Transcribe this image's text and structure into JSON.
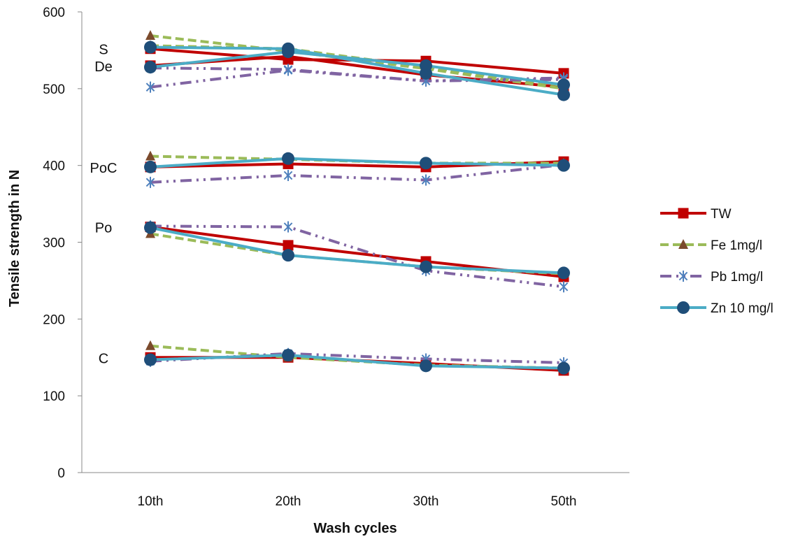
{
  "chart_data": {
    "type": "line",
    "title": "",
    "xlabel": "Wash cycles",
    "ylabel": "Tensile strength in N",
    "categories": [
      "10th",
      "20th",
      "30th",
      "50th"
    ],
    "ylim": [
      0,
      600
    ],
    "yticks": [
      0,
      100,
      200,
      300,
      400,
      500,
      600
    ],
    "grid": false,
    "legend_position": "right",
    "series_styles": [
      {
        "name": "TW",
        "color": "#C00000",
        "dash": "",
        "marker": "square"
      },
      {
        "name": "Fe 1mg/l",
        "color": "#9BBB59",
        "dash": "12 6",
        "marker": "triangle",
        "marker_color": "#7B4A2C"
      },
      {
        "name": "Pb 1mg/l",
        "color": "#8064A2",
        "dash": "16 7 3 7 3 7",
        "marker": "star",
        "marker_color": "#4F81BD"
      },
      {
        "name": "Zn 10 mg/l",
        "color": "#4BACC6",
        "dash": "",
        "marker": "circle",
        "marker_color": "#1F4E79"
      }
    ],
    "groups": [
      {
        "label": "S",
        "values": {
          "TW": [
            552,
            538,
            536,
            520
          ],
          "Fe 1mg/l": [
            569,
            549,
            526,
            500
          ],
          "Pb 1mg/l": [
            527,
            525,
            510,
            514
          ],
          "Zn 10 mg/l": [
            554,
            552,
            520,
            492
          ]
        }
      },
      {
        "label": "De",
        "values": {
          "TW": [
            530,
            542,
            518,
            502
          ],
          "Fe 1mg/l": [
            556,
            552,
            528,
            504
          ],
          "Pb 1mg/l": [
            502,
            524,
            510,
            512
          ],
          "Zn 10 mg/l": [
            528,
            548,
            530,
            505
          ]
        }
      },
      {
        "label": "PoC",
        "values": {
          "TW": [
            398,
            402,
            398,
            405
          ],
          "Fe 1mg/l": [
            412,
            408,
            403,
            403
          ],
          "Pb 1mg/l": [
            378,
            387,
            381,
            401
          ],
          "Zn 10 mg/l": [
            398,
            409,
            403,
            400
          ]
        }
      },
      {
        "label": "Po",
        "values": {
          "TW": [
            320,
            296,
            275,
            255
          ],
          "Fe 1mg/l": [
            311,
            283,
            268,
            259
          ],
          "Pb 1mg/l": [
            321,
            320,
            263,
            242
          ],
          "Zn 10 mg/l": [
            319,
            283,
            268,
            260
          ]
        }
      },
      {
        "label": "C",
        "values": {
          "TW": [
            150,
            150,
            142,
            133
          ],
          "Fe 1mg/l": [
            165,
            150,
            140,
            136
          ],
          "Pb 1mg/l": [
            145,
            155,
            148,
            143
          ],
          "Zn 10 mg/l": [
            147,
            153,
            139,
            136
          ]
        }
      }
    ]
  }
}
